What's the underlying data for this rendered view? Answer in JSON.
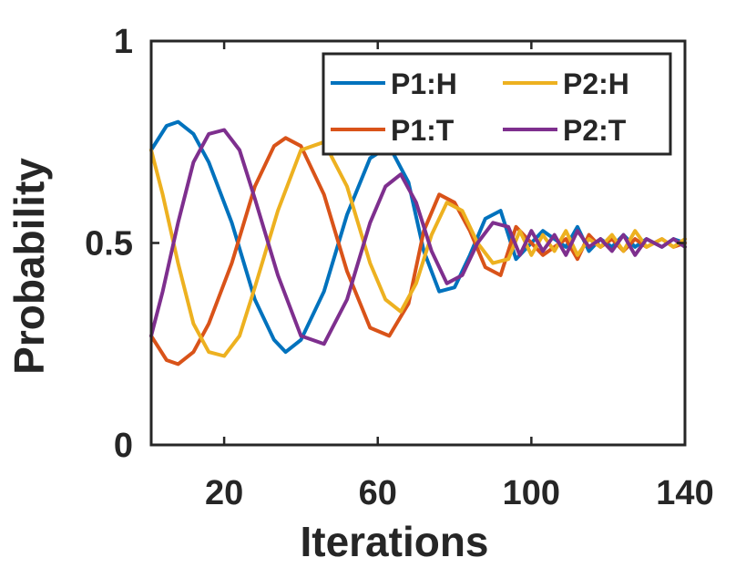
{
  "chart_data": {
    "type": "line",
    "xlabel": "Iterations",
    "ylabel": "Probability",
    "xlim": [
      1,
      140
    ],
    "ylim": [
      0,
      1
    ],
    "xticks": [
      20,
      60,
      100,
      140
    ],
    "xtick_labels": [
      "20",
      "60",
      "100",
      "140"
    ],
    "yticks": [
      0,
      0.5,
      1
    ],
    "ytick_labels": [
      "0",
      "0.5",
      "1"
    ],
    "grid": false,
    "legend_position": "top-right",
    "series": [
      {
        "name": "P1:H",
        "color": "#0072BD",
        "x": [
          1,
          5,
          8,
          12,
          16,
          22,
          28,
          33,
          36,
          40,
          46,
          52,
          58,
          63,
          68,
          72,
          76,
          80,
          84,
          88,
          92,
          94,
          96,
          98,
          100,
          103,
          106,
          109,
          112,
          115,
          118,
          121,
          124,
          127,
          130,
          134,
          137,
          140
        ],
        "y": [
          0.73,
          0.79,
          0.8,
          0.77,
          0.7,
          0.55,
          0.36,
          0.26,
          0.23,
          0.26,
          0.38,
          0.57,
          0.71,
          0.74,
          0.65,
          0.48,
          0.38,
          0.39,
          0.47,
          0.56,
          0.58,
          0.52,
          0.46,
          0.48,
          0.5,
          0.53,
          0.51,
          0.49,
          0.54,
          0.48,
          0.51,
          0.49,
          0.52,
          0.49,
          0.51,
          0.49,
          0.51,
          0.5
        ]
      },
      {
        "name": "P1:T",
        "color": "#D95319",
        "x": [
          1,
          5,
          8,
          12,
          16,
          22,
          28,
          33,
          36,
          40,
          46,
          52,
          58,
          63,
          68,
          72,
          76,
          80,
          84,
          88,
          92,
          94,
          96,
          98,
          100,
          103,
          106,
          109,
          112,
          115,
          118,
          121,
          124,
          127,
          130,
          134,
          137,
          140
        ],
        "y": [
          0.27,
          0.21,
          0.2,
          0.23,
          0.3,
          0.45,
          0.64,
          0.74,
          0.76,
          0.74,
          0.62,
          0.43,
          0.29,
          0.27,
          0.35,
          0.53,
          0.62,
          0.6,
          0.53,
          0.44,
          0.42,
          0.48,
          0.54,
          0.52,
          0.5,
          0.47,
          0.49,
          0.51,
          0.46,
          0.52,
          0.49,
          0.51,
          0.48,
          0.51,
          0.49,
          0.51,
          0.49,
          0.5
        ]
      },
      {
        "name": "P2:H",
        "color": "#EDB120",
        "x": [
          1,
          4,
          8,
          12,
          16,
          20,
          24,
          28,
          34,
          40,
          46,
          52,
          58,
          62,
          66,
          70,
          74,
          78,
          82,
          86,
          90,
          94,
          97,
          100,
          103,
          106,
          109,
          112,
          115,
          118,
          121,
          124,
          127,
          130,
          134,
          137,
          140
        ],
        "y": [
          0.73,
          0.62,
          0.45,
          0.3,
          0.23,
          0.22,
          0.27,
          0.39,
          0.58,
          0.73,
          0.75,
          0.64,
          0.45,
          0.36,
          0.33,
          0.4,
          0.52,
          0.6,
          0.58,
          0.5,
          0.45,
          0.46,
          0.53,
          0.47,
          0.52,
          0.48,
          0.53,
          0.47,
          0.51,
          0.49,
          0.52,
          0.48,
          0.53,
          0.49,
          0.51,
          0.49,
          0.51
        ]
      },
      {
        "name": "P2:T",
        "color": "#7E2F8E",
        "x": [
          1,
          4,
          8,
          12,
          16,
          20,
          24,
          28,
          34,
          40,
          46,
          52,
          58,
          62,
          66,
          70,
          74,
          78,
          82,
          86,
          90,
          94,
          97,
          100,
          103,
          106,
          109,
          112,
          115,
          118,
          121,
          124,
          127,
          130,
          134,
          137,
          140
        ],
        "y": [
          0.27,
          0.38,
          0.55,
          0.7,
          0.77,
          0.78,
          0.73,
          0.61,
          0.42,
          0.27,
          0.25,
          0.36,
          0.55,
          0.64,
          0.67,
          0.6,
          0.48,
          0.4,
          0.42,
          0.5,
          0.55,
          0.54,
          0.47,
          0.53,
          0.48,
          0.52,
          0.47,
          0.53,
          0.49,
          0.51,
          0.48,
          0.52,
          0.47,
          0.51,
          0.49,
          0.51,
          0.49
        ]
      }
    ]
  }
}
